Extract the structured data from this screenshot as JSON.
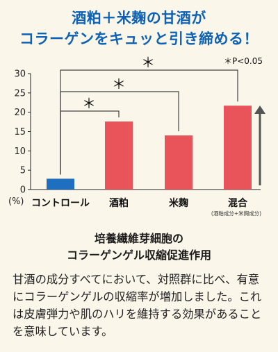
{
  "headline": {
    "line1": "酒粕＋米麹の甘酒が",
    "line2": "コラーゲンをキュッと引き締める！"
  },
  "chart_data": {
    "type": "bar",
    "categories": [
      "コントロール",
      "酒粕",
      "米麹",
      "混合"
    ],
    "values": [
      2.8,
      17.6,
      14.0,
      21.7
    ],
    "bar_colors": [
      "#1f6fc1",
      "#e8545a",
      "#e8545a",
      "#e8545a"
    ],
    "ylim": [
      0,
      30
    ],
    "yticks": [
      "0",
      "5",
      "10",
      "15",
      "20",
      "25",
      "30"
    ],
    "ylabel": "(%)",
    "category_subnote": "(酒粕成分+米麹成分)",
    "significance_marker": "＊",
    "significance_note": "＊P<0.05",
    "arrow_color": "#555555"
  },
  "caption": {
    "line1": "培養繊維芽細胞の",
    "line2": "コラーゲンゲル収縮促進作用"
  },
  "body_text": "甘酒の成分すべてにおいて、対照群に比べ、有意にコラーゲンゲルの収縮率が増加しました。これは皮膚弾力や肌のハリを維持する効果があることを意味しています。"
}
